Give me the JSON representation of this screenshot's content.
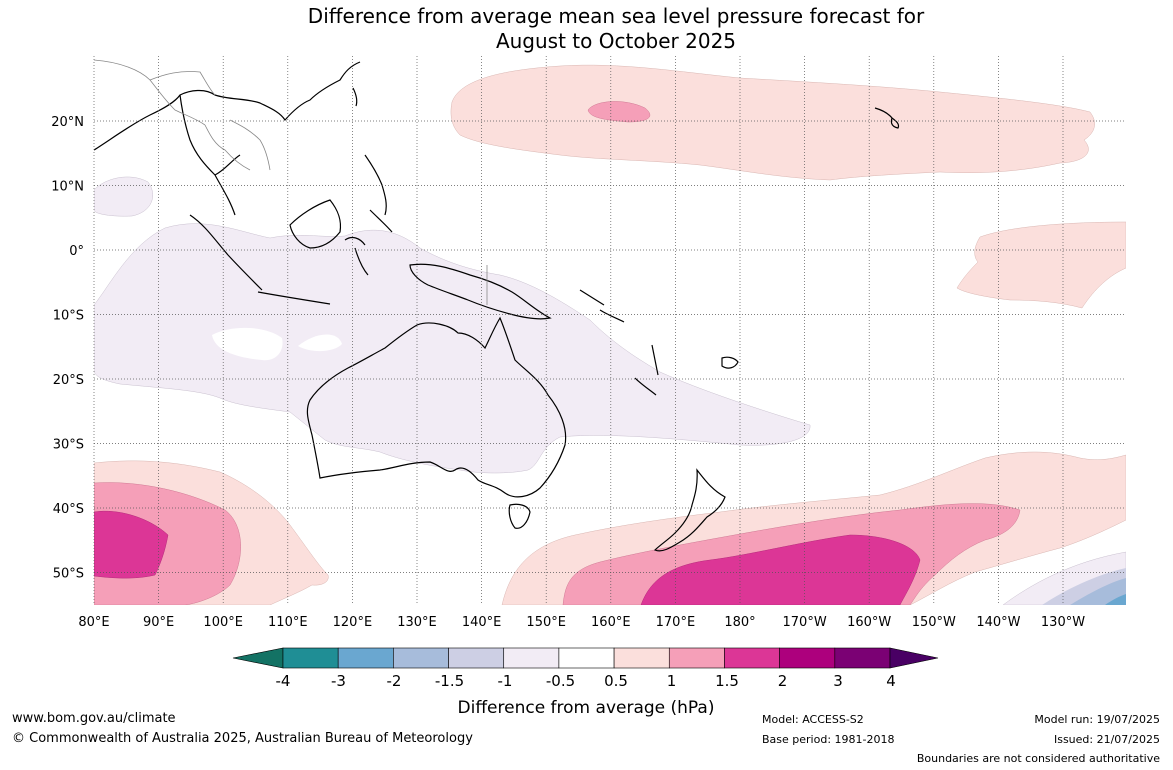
{
  "title": {
    "line1": "Difference from average mean sea level pressure forecast for",
    "line2": "August to October 2025"
  },
  "map": {
    "projection": "equirectangular",
    "lon_labels": [
      "80°E",
      "90°E",
      "100°E",
      "110°E",
      "120°E",
      "130°E",
      "140°E",
      "150°E",
      "160°E",
      "170°E",
      "180°",
      "170°W",
      "160°W",
      "150°W",
      "140°W",
      "130°W"
    ],
    "lat_labels": [
      "20°N",
      "10°N",
      "0°",
      "10°S",
      "20°S",
      "30°S",
      "40°S",
      "50°S"
    ],
    "gridlines": "dotted",
    "contour_fill_colors": {
      "anomaly_0.5_to_1": "#fbdfdc",
      "anomaly_1_to_1.5": "#f59fb8",
      "anomaly_1.5_to_2": "#dc3696",
      "anomaly_-1_to_-0.5": "#f2ecf5",
      "anomaly_-1.5_to_-1": "#cdcfe4",
      "anomaly_-2_to_-1.5": "#a7bcdb",
      "anomaly_-3_to_-2": "#6aa7d0"
    }
  },
  "colorbar": {
    "labels": [
      "-4",
      "-3",
      "-2",
      "-1.5",
      "-1",
      "-0.5",
      "0.5",
      "1",
      "1.5",
      "2",
      "3",
      "4"
    ],
    "colors": [
      "#137264",
      "#1f8e95",
      "#6aa7d0",
      "#a7bcdb",
      "#cdcfe4",
      "#f2ecf5",
      "#ffffff",
      "#fbdfdc",
      "#f59fb8",
      "#dc3696",
      "#ad007d",
      "#7b0174",
      "#490064"
    ],
    "label": "Difference from average (hPa)"
  },
  "footer": {
    "website": "www.bom.gov.au/climate",
    "copyright": "© Commonwealth of Australia 2025, Australian Bureau of Meteorology",
    "model": "Model: ACCESS-S2",
    "base_period": "Base period: 1981-2018",
    "model_run": "Model run: 19/07/2025",
    "issued": "Issued: 21/07/2025",
    "disclaimer": "Boundaries are not considered authoritative"
  }
}
